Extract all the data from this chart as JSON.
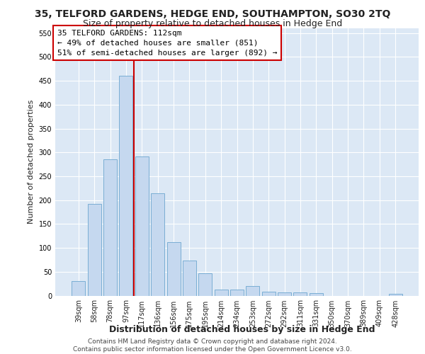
{
  "title_line1": "35, TELFORD GARDENS, HEDGE END, SOUTHAMPTON, SO30 2TQ",
  "title_line2": "Size of property relative to detached houses in Hedge End",
  "xlabel": "Distribution of detached houses by size in Hedge End",
  "ylabel": "Number of detached properties",
  "categories": [
    "39sqm",
    "58sqm",
    "78sqm",
    "97sqm",
    "117sqm",
    "136sqm",
    "156sqm",
    "175sqm",
    "195sqm",
    "214sqm",
    "234sqm",
    "253sqm",
    "272sqm",
    "292sqm",
    "311sqm",
    "331sqm",
    "350sqm",
    "370sqm",
    "389sqm",
    "409sqm",
    "428sqm"
  ],
  "values": [
    30,
    192,
    285,
    460,
    292,
    215,
    112,
    74,
    46,
    13,
    13,
    20,
    8,
    6,
    6,
    5,
    0,
    0,
    0,
    0,
    4
  ],
  "bar_color": "#c5d8ef",
  "bar_edge_color": "#7aaed4",
  "vline_index": 4,
  "vline_color": "#cc0000",
  "annotation_line1": "35 TELFORD GARDENS: 112sqm",
  "annotation_line2": "← 49% of detached houses are smaller (851)",
  "annotation_line3": "51% of semi-detached houses are larger (892) →",
  "annotation_box_facecolor": "#ffffff",
  "annotation_box_edgecolor": "#cc0000",
  "ylim": [
    0,
    560
  ],
  "yticks": [
    0,
    50,
    100,
    150,
    200,
    250,
    300,
    350,
    400,
    450,
    500,
    550
  ],
  "plot_bg_color": "#dce8f5",
  "grid_color": "#ffffff",
  "footer_text": "Contains HM Land Registry data © Crown copyright and database right 2024.\nContains public sector information licensed under the Open Government Licence v3.0.",
  "title_fontsize": 10,
  "subtitle_fontsize": 9,
  "ylabel_fontsize": 8,
  "xlabel_fontsize": 9,
  "tick_fontsize": 7,
  "annotation_fontsize": 8,
  "footer_fontsize": 6.5
}
